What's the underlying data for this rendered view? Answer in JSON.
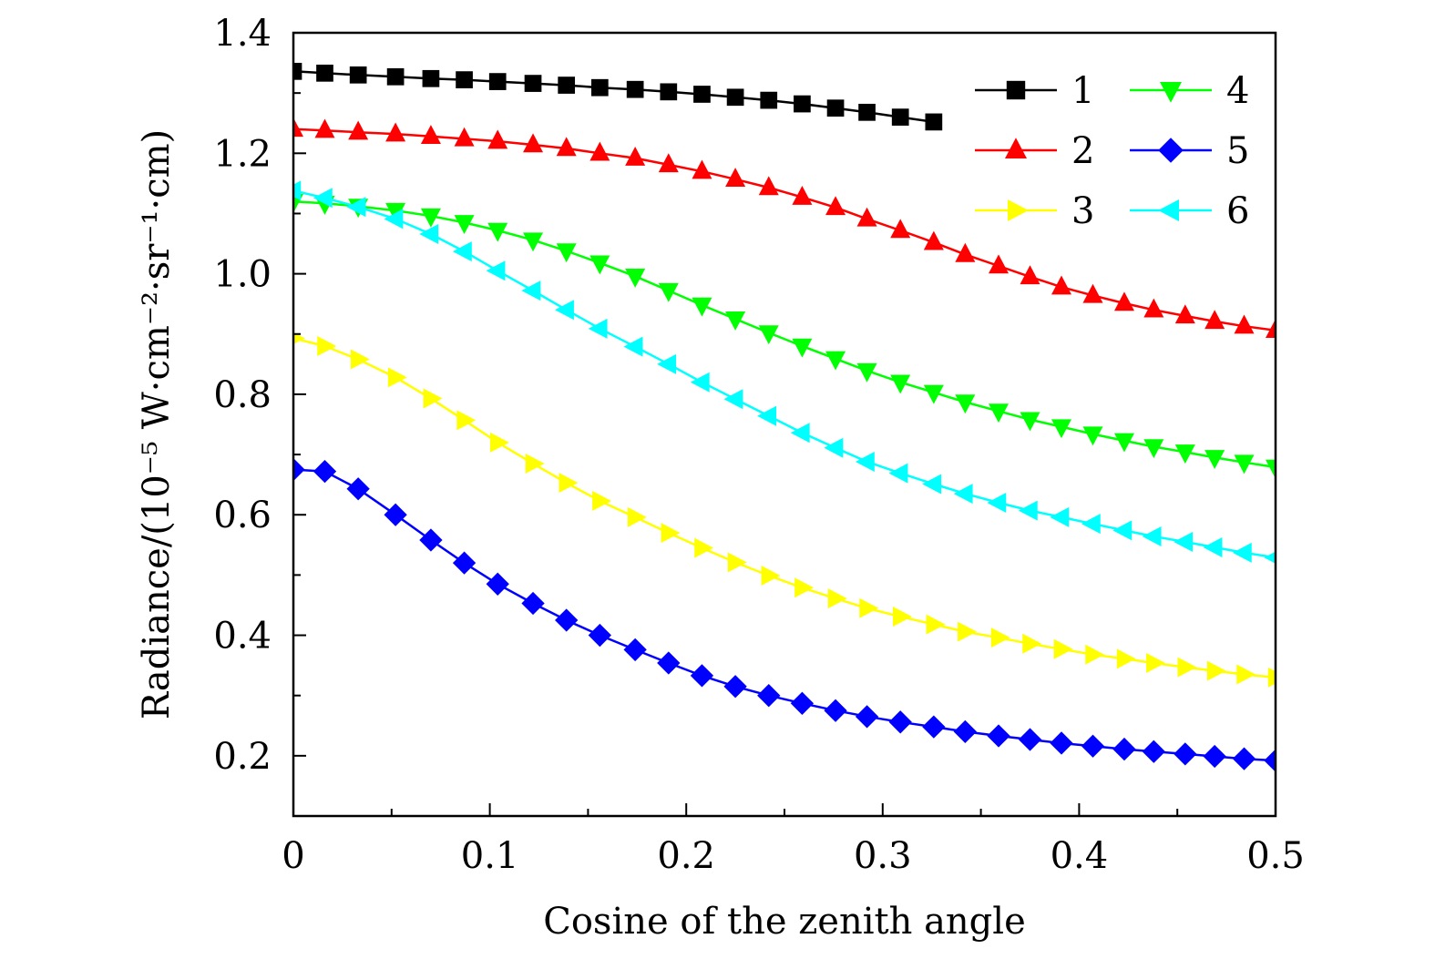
{
  "chart_data": {
    "type": "line",
    "title": "",
    "xlabel": "Cosine of the zenith angle",
    "ylabel": "Radiance/(10⁻⁵ W·cm⁻²·sr⁻¹·cm)",
    "xlim": [
      0,
      0.5
    ],
    "ylim": [
      0.1,
      1.4
    ],
    "xticks": [
      0,
      0.1,
      0.2,
      0.3,
      0.4,
      0.5
    ],
    "xtick_labels": [
      "0",
      "0.1",
      "0.2",
      "0.3",
      "0.4",
      "0.5"
    ],
    "yticks": [
      0.2,
      0.4,
      0.6,
      0.8,
      1.0,
      1.2,
      1.4
    ],
    "ytick_labels": [
      "0.2",
      "0.4",
      "0.6",
      "0.8",
      "1.0",
      "1.2",
      "1.4"
    ],
    "grid": false,
    "legend_position": "top-right",
    "series": [
      {
        "name": "1",
        "color": "#000000",
        "marker": "square",
        "x": [
          0,
          0.016,
          0.033,
          0.052,
          0.07,
          0.087,
          0.104,
          0.122,
          0.139,
          0.156,
          0.174,
          0.191,
          0.208,
          0.225,
          0.242,
          0.259,
          0.276,
          0.292,
          0.309,
          0.326
        ],
        "y": [
          1.336,
          1.333,
          1.33,
          1.327,
          1.324,
          1.322,
          1.319,
          1.316,
          1.313,
          1.309,
          1.306,
          1.302,
          1.298,
          1.293,
          1.288,
          1.282,
          1.275,
          1.268,
          1.26,
          1.252
        ]
      },
      {
        "name": "2",
        "color": "#ff0000",
        "marker": "triangle-up",
        "x": [
          0,
          0.016,
          0.033,
          0.052,
          0.07,
          0.087,
          0.104,
          0.122,
          0.139,
          0.156,
          0.174,
          0.191,
          0.208,
          0.225,
          0.242,
          0.259,
          0.276,
          0.292,
          0.309,
          0.326,
          0.342,
          0.359,
          0.375,
          0.391,
          0.407,
          0.423,
          0.438,
          0.454,
          0.469,
          0.484,
          0.5
        ],
        "y": [
          1.24,
          1.238,
          1.235,
          1.232,
          1.228,
          1.224,
          1.22,
          1.214,
          1.208,
          1.2,
          1.192,
          1.181,
          1.17,
          1.157,
          1.143,
          1.127,
          1.11,
          1.091,
          1.072,
          1.052,
          1.032,
          1.013,
          0.995,
          0.978,
          0.964,
          0.951,
          0.94,
          0.93,
          0.921,
          0.913,
          0.906
        ]
      },
      {
        "name": "3",
        "color": "#ffff00",
        "marker": "triangle-right",
        "x": [
          0,
          0.016,
          0.033,
          0.052,
          0.07,
          0.087,
          0.104,
          0.122,
          0.139,
          0.156,
          0.174,
          0.191,
          0.208,
          0.225,
          0.242,
          0.259,
          0.276,
          0.292,
          0.309,
          0.326,
          0.342,
          0.359,
          0.375,
          0.391,
          0.407,
          0.423,
          0.438,
          0.454,
          0.469,
          0.484,
          0.5
        ],
        "y": [
          0.893,
          0.88,
          0.858,
          0.828,
          0.793,
          0.757,
          0.72,
          0.685,
          0.653,
          0.623,
          0.596,
          0.57,
          0.545,
          0.521,
          0.499,
          0.479,
          0.461,
          0.445,
          0.431,
          0.418,
          0.406,
          0.396,
          0.386,
          0.377,
          0.368,
          0.361,
          0.354,
          0.347,
          0.341,
          0.335,
          0.33
        ]
      },
      {
        "name": "4",
        "color": "#00ff00",
        "marker": "triangle-down",
        "x": [
          0,
          0.016,
          0.033,
          0.052,
          0.07,
          0.087,
          0.104,
          0.122,
          0.139,
          0.156,
          0.174,
          0.191,
          0.208,
          0.225,
          0.242,
          0.259,
          0.276,
          0.292,
          0.309,
          0.326,
          0.342,
          0.359,
          0.375,
          0.391,
          0.407,
          0.423,
          0.438,
          0.454,
          0.469,
          0.484,
          0.5
        ],
        "y": [
          1.12,
          1.117,
          1.112,
          1.105,
          1.096,
          1.085,
          1.072,
          1.056,
          1.038,
          1.018,
          0.996,
          0.972,
          0.948,
          0.925,
          0.902,
          0.88,
          0.859,
          0.839,
          0.82,
          0.803,
          0.787,
          0.772,
          0.758,
          0.746,
          0.734,
          0.723,
          0.713,
          0.704,
          0.695,
          0.687,
          0.679
        ]
      },
      {
        "name": "5",
        "color": "#0000ff",
        "marker": "diamond",
        "x": [
          0,
          0.016,
          0.033,
          0.052,
          0.07,
          0.087,
          0.104,
          0.122,
          0.139,
          0.156,
          0.174,
          0.191,
          0.208,
          0.225,
          0.242,
          0.259,
          0.276,
          0.292,
          0.309,
          0.326,
          0.342,
          0.359,
          0.375,
          0.391,
          0.407,
          0.423,
          0.438,
          0.454,
          0.469,
          0.484,
          0.5
        ],
        "y": [
          0.675,
          0.672,
          0.643,
          0.6,
          0.558,
          0.52,
          0.485,
          0.453,
          0.425,
          0.4,
          0.376,
          0.354,
          0.333,
          0.315,
          0.3,
          0.287,
          0.275,
          0.265,
          0.256,
          0.248,
          0.24,
          0.233,
          0.227,
          0.221,
          0.216,
          0.211,
          0.207,
          0.203,
          0.199,
          0.195,
          0.192
        ]
      },
      {
        "name": "6",
        "color": "#00ffff",
        "marker": "triangle-left",
        "x": [
          0,
          0.016,
          0.033,
          0.052,
          0.07,
          0.087,
          0.104,
          0.122,
          0.139,
          0.156,
          0.174,
          0.191,
          0.208,
          0.225,
          0.242,
          0.259,
          0.276,
          0.292,
          0.309,
          0.326,
          0.342,
          0.359,
          0.375,
          0.391,
          0.407,
          0.423,
          0.438,
          0.454,
          0.469,
          0.484,
          0.5
        ],
        "y": [
          1.138,
          1.126,
          1.111,
          1.091,
          1.066,
          1.037,
          1.005,
          0.972,
          0.94,
          0.909,
          0.879,
          0.85,
          0.82,
          0.792,
          0.764,
          0.736,
          0.711,
          0.688,
          0.669,
          0.651,
          0.635,
          0.62,
          0.607,
          0.596,
          0.585,
          0.574,
          0.564,
          0.555,
          0.546,
          0.537,
          0.529
        ]
      }
    ]
  }
}
